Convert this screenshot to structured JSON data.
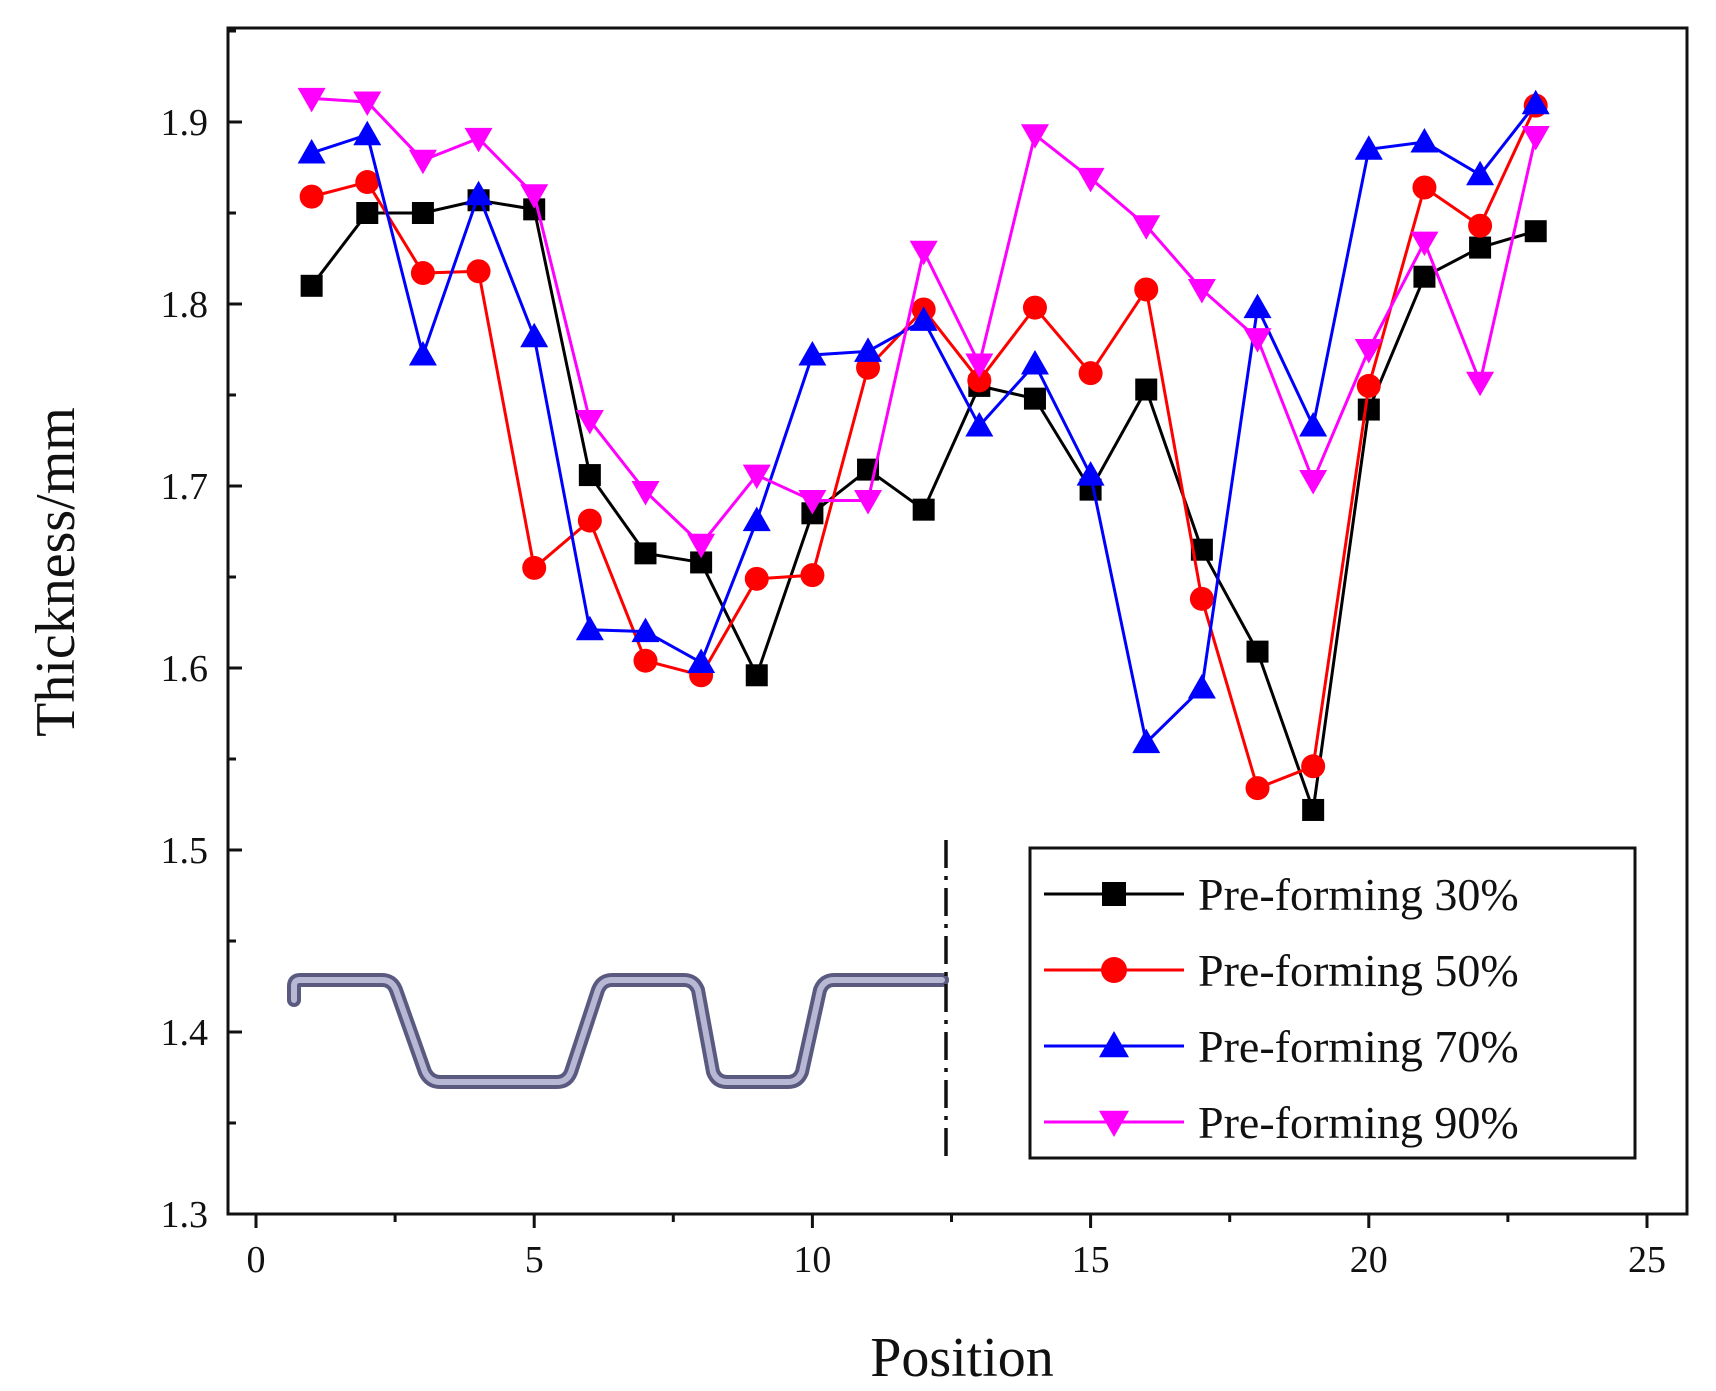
{
  "chart_data": {
    "type": "line",
    "title": "",
    "xlabel": "Position",
    "ylabel": "Thickness/mm",
    "xlim": [
      0,
      25
    ],
    "ylim": [
      1.3,
      1.95
    ],
    "xticks": [
      0,
      5,
      10,
      15,
      20,
      25
    ],
    "yticks": [
      1.3,
      1.4,
      1.5,
      1.6,
      1.7,
      1.8,
      1.9
    ],
    "x": [
      1,
      2,
      3,
      4,
      5,
      6,
      7,
      8,
      9,
      10,
      11,
      12,
      13,
      14,
      15,
      16,
      17,
      18,
      19,
      20,
      21,
      22,
      23
    ],
    "legend_position": "bottom-right",
    "grid": false,
    "series": [
      {
        "name": "Pre-forming 30%",
        "color": "#000000",
        "marker": "square",
        "values": [
          1.81,
          1.85,
          1.85,
          1.857,
          1.852,
          1.706,
          1.663,
          1.658,
          1.596,
          1.685,
          1.709,
          1.687,
          1.755,
          1.748,
          1.698,
          1.753,
          1.665,
          1.609,
          1.522,
          1.742,
          1.815,
          1.831,
          1.84
        ]
      },
      {
        "name": "Pre-forming 50%",
        "color": "#ff0000",
        "marker": "circle",
        "values": [
          1.859,
          1.867,
          1.817,
          1.818,
          1.655,
          1.681,
          1.604,
          1.596,
          1.649,
          1.651,
          1.765,
          1.797,
          1.758,
          1.798,
          1.762,
          1.808,
          1.638,
          1.534,
          1.546,
          1.755,
          1.864,
          1.843,
          1.909
        ]
      },
      {
        "name": "Pre-forming 70%",
        "color": "#0000ff",
        "marker": "triangle-up",
        "values": [
          1.883,
          1.893,
          1.772,
          1.86,
          1.782,
          1.621,
          1.62,
          1.603,
          1.681,
          1.772,
          1.774,
          1.791,
          1.733,
          1.767,
          1.706,
          1.559,
          1.589,
          1.798,
          1.733,
          1.885,
          1.889,
          1.871,
          1.91
        ]
      },
      {
        "name": "Pre-forming 90%",
        "color": "#ff00ff",
        "marker": "triangle-down",
        "values": [
          1.913,
          1.911,
          1.879,
          1.891,
          1.86,
          1.736,
          1.697,
          1.668,
          1.706,
          1.692,
          1.692,
          1.829,
          1.767,
          1.893,
          1.869,
          1.843,
          1.808,
          1.781,
          1.703,
          1.775,
          1.834,
          1.757,
          1.892
        ]
      }
    ],
    "inset": "corrugated profile cross-section with dash-dot symmetry line"
  }
}
